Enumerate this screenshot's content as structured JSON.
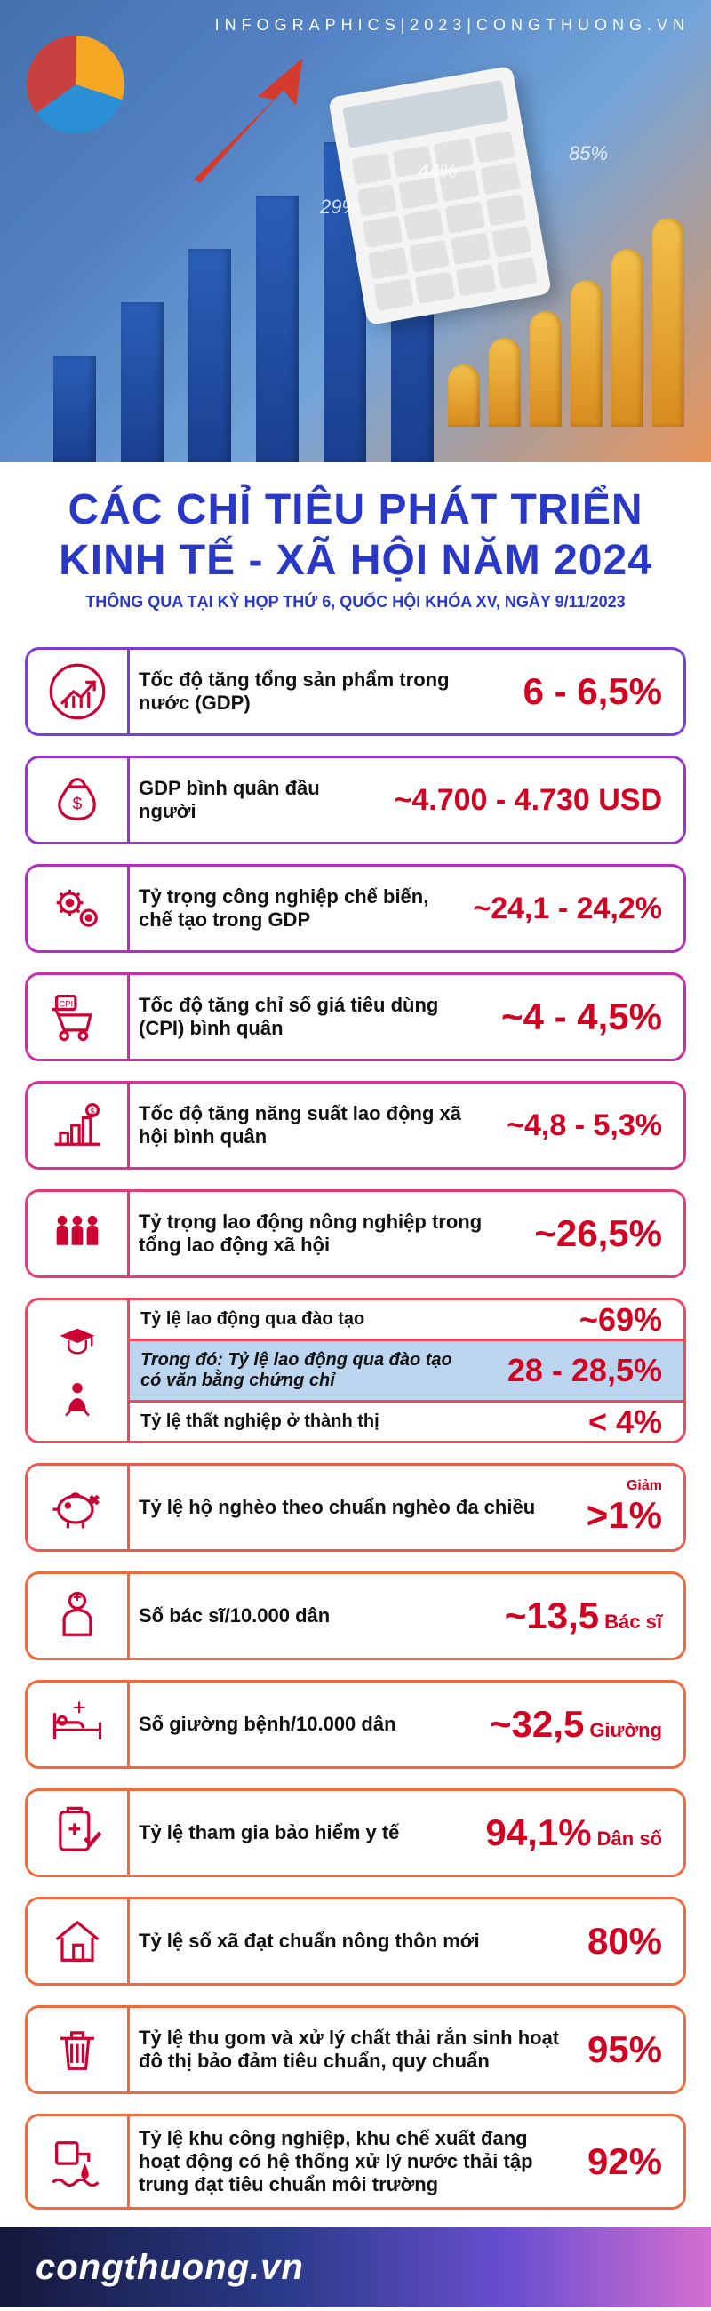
{
  "hero": {
    "tagline": "INFOGRAPHICS|2023|CONGTHUONG.VN",
    "bar_heights": [
      120,
      180,
      240,
      300,
      360,
      420
    ],
    "gold_heights": [
      70,
      100,
      130,
      165,
      200,
      235
    ],
    "pcts": [
      "29%",
      "44%",
      "85%"
    ],
    "pct_positions": [
      [
        360,
        220
      ],
      [
        470,
        180
      ],
      [
        640,
        160
      ]
    ]
  },
  "title": {
    "line1": "CÁC CHỈ TIÊU PHÁT TRIỂN",
    "line2": "KINH TẾ - XÃ HỘI NĂM 2024",
    "subtitle": "THÔNG QUA TẠI KỲ HỌP THỨ 6, QUỐC HỘI KHÓA XV, NGÀY 9/11/2023",
    "color": "#2a38c8",
    "subtitle_color": "#2a38c8"
  },
  "palette": {
    "value_color": "#d40022",
    "border_colors": [
      "#7a3fd8",
      "#9a35cc",
      "#b52cc0",
      "#c92da8",
      "#d83390",
      "#e53b78",
      "#ef4860",
      "#f0574e",
      "#f06a3e"
    ]
  },
  "items": [
    {
      "icon": "growth",
      "label": "Tốc độ tăng tổng sản phẩm trong nước (GDP)",
      "value": "6 - 6,5%",
      "size": "big"
    },
    {
      "icon": "moneybag",
      "label": "GDP bình quân đầu người",
      "value": "~4.700 - 4.730 USD",
      "size": "med"
    },
    {
      "icon": "gears",
      "label": "Tỷ trọng công nghiệp chế biến, chế tạo trong GDP",
      "value": "~24,1 - 24,2%",
      "size": "med"
    },
    {
      "icon": "cpi",
      "label": "Tốc độ tăng chỉ số giá tiêu dùng (CPI) bình quân",
      "value": "~4 - 4,5%",
      "size": "big"
    },
    {
      "icon": "productivity",
      "label": "Tốc độ tăng năng suất lao động xã hội bình quân",
      "value": "~4,8 - 5,3%",
      "size": "med"
    },
    {
      "icon": "farmers",
      "label": "Tỷ trọng lao động nông nghiệp trong tổng lao động xã hội",
      "value": "~26,5%",
      "size": "big"
    },
    {
      "type": "nested",
      "icon": "nested",
      "rows": [
        {
          "icon": "grad",
          "label": "Tỷ lệ lao động qua đào tạo",
          "value": "~69%"
        },
        {
          "hl": true,
          "label": "Trong đó: Tỷ lệ lao động qua đào tạo có văn bằng chứng chỉ",
          "value": "28 - 28,5%"
        },
        {
          "icon": "unemp",
          "label": "Tỷ lệ thất nghiệp ở thành thị",
          "value": "< 4%"
        }
      ]
    },
    {
      "icon": "piggy",
      "label": "Tỷ lệ hộ nghèo theo chuẩn nghèo đa chiều",
      "prefix": "Giảm",
      "value": ">1%",
      "size": "big"
    },
    {
      "icon": "doctor",
      "label": "Số bác sĩ/10.000 dân",
      "value": "~13,5",
      "unit": "Bác sĩ",
      "size": "big"
    },
    {
      "icon": "bed",
      "label": "Số giường bệnh/10.000 dân",
      "value": "~32,5",
      "unit": "Giường",
      "size": "big"
    },
    {
      "icon": "insurance",
      "label": "Tỷ lệ tham gia bảo hiểm y tế",
      "value": "94,1%",
      "unit": "Dân số",
      "size": "big"
    },
    {
      "icon": "house",
      "label": "Tỷ lệ số xã đạt chuẩn nông thôn mới",
      "value": "80%",
      "size": "big"
    },
    {
      "icon": "trash",
      "label": "Tỷ lệ thu gom và xử lý chất thải rắn sinh hoạt đô thị bảo đảm tiêu chuẩn, quy chuẩn",
      "value": "95%",
      "size": "big"
    },
    {
      "icon": "water",
      "label": "Tỷ lệ khu công nghiệp, khu chế xuất đang hoạt động có hệ thống xử lý nước thải tập trung đạt tiêu chuẩn môi trường",
      "value": "92%",
      "size": "big"
    }
  ],
  "footer": {
    "text": "congthuong.vn"
  }
}
